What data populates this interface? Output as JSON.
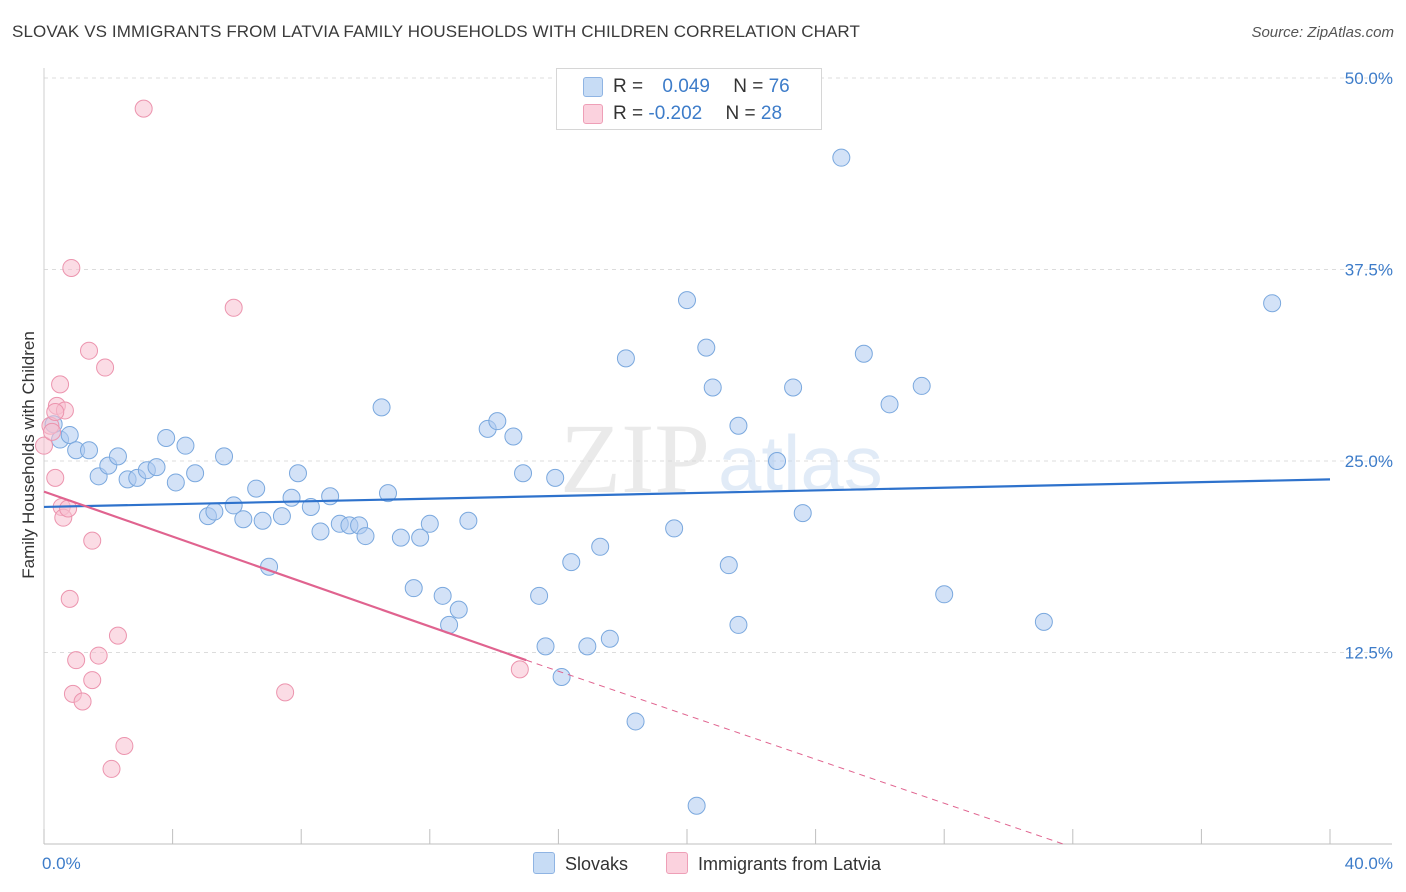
{
  "title": "SLOVAK VS IMMIGRANTS FROM LATVIA FAMILY HOUSEHOLDS WITH CHILDREN CORRELATION CHART",
  "source": "Source: ZipAtlas.com",
  "watermark": {
    "zip": "ZIP",
    "atlas": "atlas"
  },
  "legend": {
    "rows": [
      {
        "r_label": "R = ",
        "r_value": "0.049",
        "n_label": "N = ",
        "n_value": "76",
        "color": "#aecbf0"
      },
      {
        "r_label": "R = ",
        "r_value": "-0.202",
        "n_label": "N = ",
        "n_value": "28",
        "color": "#f7c0cf"
      }
    ]
  },
  "bottom_legend": [
    {
      "label": "Slovaks",
      "color": "#aecbf0"
    },
    {
      "label": "Immigrants from Latvia",
      "color": "#f7c0cf"
    }
  ],
  "chart_data": {
    "type": "scatter",
    "ylabel": "Family Households with Children",
    "xlim": [
      0,
      40
    ],
    "ylim": [
      0,
      50
    ],
    "x_tick_labels": [
      "0.0%",
      "40.0%"
    ],
    "y_ticks": [
      12.5,
      25.0,
      37.5,
      50.0
    ],
    "y_tick_labels": [
      "12.5%",
      "25.0%",
      "37.5%",
      "50.0%"
    ],
    "grid": "horizontal dashed",
    "legend_position": "top-center",
    "series": [
      {
        "name": "Slovaks",
        "color": "#aecbf0",
        "stroke": "#7aa8de",
        "trend": {
          "x": [
            0,
            40
          ],
          "y": [
            22.0,
            23.8
          ],
          "color": "#2e72cc"
        },
        "points": [
          [
            0.3,
            27.4
          ],
          [
            0.5,
            26.4
          ],
          [
            0.8,
            26.7
          ],
          [
            1.0,
            25.7
          ],
          [
            1.4,
            25.7
          ],
          [
            1.7,
            24.0
          ],
          [
            2.0,
            24.7
          ],
          [
            2.3,
            25.3
          ],
          [
            2.6,
            23.8
          ],
          [
            2.9,
            23.9
          ],
          [
            3.2,
            24.4
          ],
          [
            3.5,
            24.6
          ],
          [
            3.8,
            26.5
          ],
          [
            4.1,
            23.6
          ],
          [
            4.4,
            26.0
          ],
          [
            4.7,
            24.2
          ],
          [
            5.1,
            21.4
          ],
          [
            5.3,
            21.7
          ],
          [
            5.6,
            25.3
          ],
          [
            5.9,
            22.1
          ],
          [
            6.2,
            21.2
          ],
          [
            6.6,
            23.2
          ],
          [
            6.8,
            21.1
          ],
          [
            7.0,
            18.1
          ],
          [
            7.4,
            21.4
          ],
          [
            7.7,
            22.6
          ],
          [
            7.9,
            24.2
          ],
          [
            8.3,
            22.0
          ],
          [
            8.6,
            20.4
          ],
          [
            8.9,
            22.7
          ],
          [
            9.2,
            20.9
          ],
          [
            9.5,
            20.8
          ],
          [
            9.8,
            20.8
          ],
          [
            10.0,
            20.1
          ],
          [
            10.5,
            28.5
          ],
          [
            10.7,
            22.9
          ],
          [
            11.1,
            20.0
          ],
          [
            11.5,
            16.7
          ],
          [
            11.7,
            20.0
          ],
          [
            12.0,
            20.9
          ],
          [
            12.4,
            16.2
          ],
          [
            12.6,
            14.3
          ],
          [
            12.9,
            15.3
          ],
          [
            13.2,
            21.1
          ],
          [
            13.8,
            27.1
          ],
          [
            14.1,
            27.6
          ],
          [
            14.6,
            26.6
          ],
          [
            14.9,
            24.2
          ],
          [
            15.4,
            16.2
          ],
          [
            15.6,
            12.9
          ],
          [
            15.9,
            23.9
          ],
          [
            16.1,
            10.9
          ],
          [
            16.4,
            18.4
          ],
          [
            16.9,
            12.9
          ],
          [
            17.3,
            19.4
          ],
          [
            17.6,
            13.4
          ],
          [
            18.1,
            31.7
          ],
          [
            18.4,
            8.0
          ],
          [
            19.6,
            20.6
          ],
          [
            20.0,
            35.5
          ],
          [
            20.3,
            2.5
          ],
          [
            20.6,
            32.4
          ],
          [
            20.8,
            29.8
          ],
          [
            21.3,
            18.2
          ],
          [
            21.6,
            27.3
          ],
          [
            21.6,
            14.3
          ],
          [
            22.8,
            25.0
          ],
          [
            23.3,
            29.8
          ],
          [
            23.6,
            21.6
          ],
          [
            24.8,
            44.8
          ],
          [
            25.5,
            32.0
          ],
          [
            26.3,
            28.7
          ],
          [
            27.3,
            29.9
          ],
          [
            28.0,
            16.3
          ],
          [
            31.1,
            14.5
          ],
          [
            38.2,
            35.3
          ]
        ]
      },
      {
        "name": "Immigrants from Latvia",
        "color": "#f7c0cf",
        "stroke": "#ec94ae",
        "trend": {
          "x": [
            0,
            15
          ],
          "y": [
            23.0,
            12.0
          ],
          "color": "#e0638f",
          "dashed_extension": {
            "x": [
              15,
              31.7
            ],
            "y": [
              12.0,
              0.0
            ]
          }
        },
        "points": [
          [
            0.0,
            26.0
          ],
          [
            0.2,
            27.3
          ],
          [
            0.25,
            26.9
          ],
          [
            0.35,
            23.9
          ],
          [
            0.4,
            28.6
          ],
          [
            0.5,
            30.0
          ],
          [
            0.55,
            22.0
          ],
          [
            0.6,
            21.3
          ],
          [
            0.65,
            28.3
          ],
          [
            0.75,
            21.9
          ],
          [
            0.8,
            16.0
          ],
          [
            0.85,
            37.6
          ],
          [
            0.9,
            9.8
          ],
          [
            1.0,
            12.0
          ],
          [
            1.2,
            9.3
          ],
          [
            1.4,
            32.2
          ],
          [
            1.5,
            19.8
          ],
          [
            1.5,
            10.7
          ],
          [
            1.7,
            12.3
          ],
          [
            1.9,
            31.1
          ],
          [
            2.1,
            4.9
          ],
          [
            2.3,
            13.6
          ],
          [
            2.5,
            6.4
          ],
          [
            3.1,
            48.0
          ],
          [
            5.9,
            35.0
          ],
          [
            7.5,
            9.9
          ],
          [
            14.8,
            11.4
          ],
          [
            0.35,
            28.2
          ]
        ]
      }
    ]
  }
}
